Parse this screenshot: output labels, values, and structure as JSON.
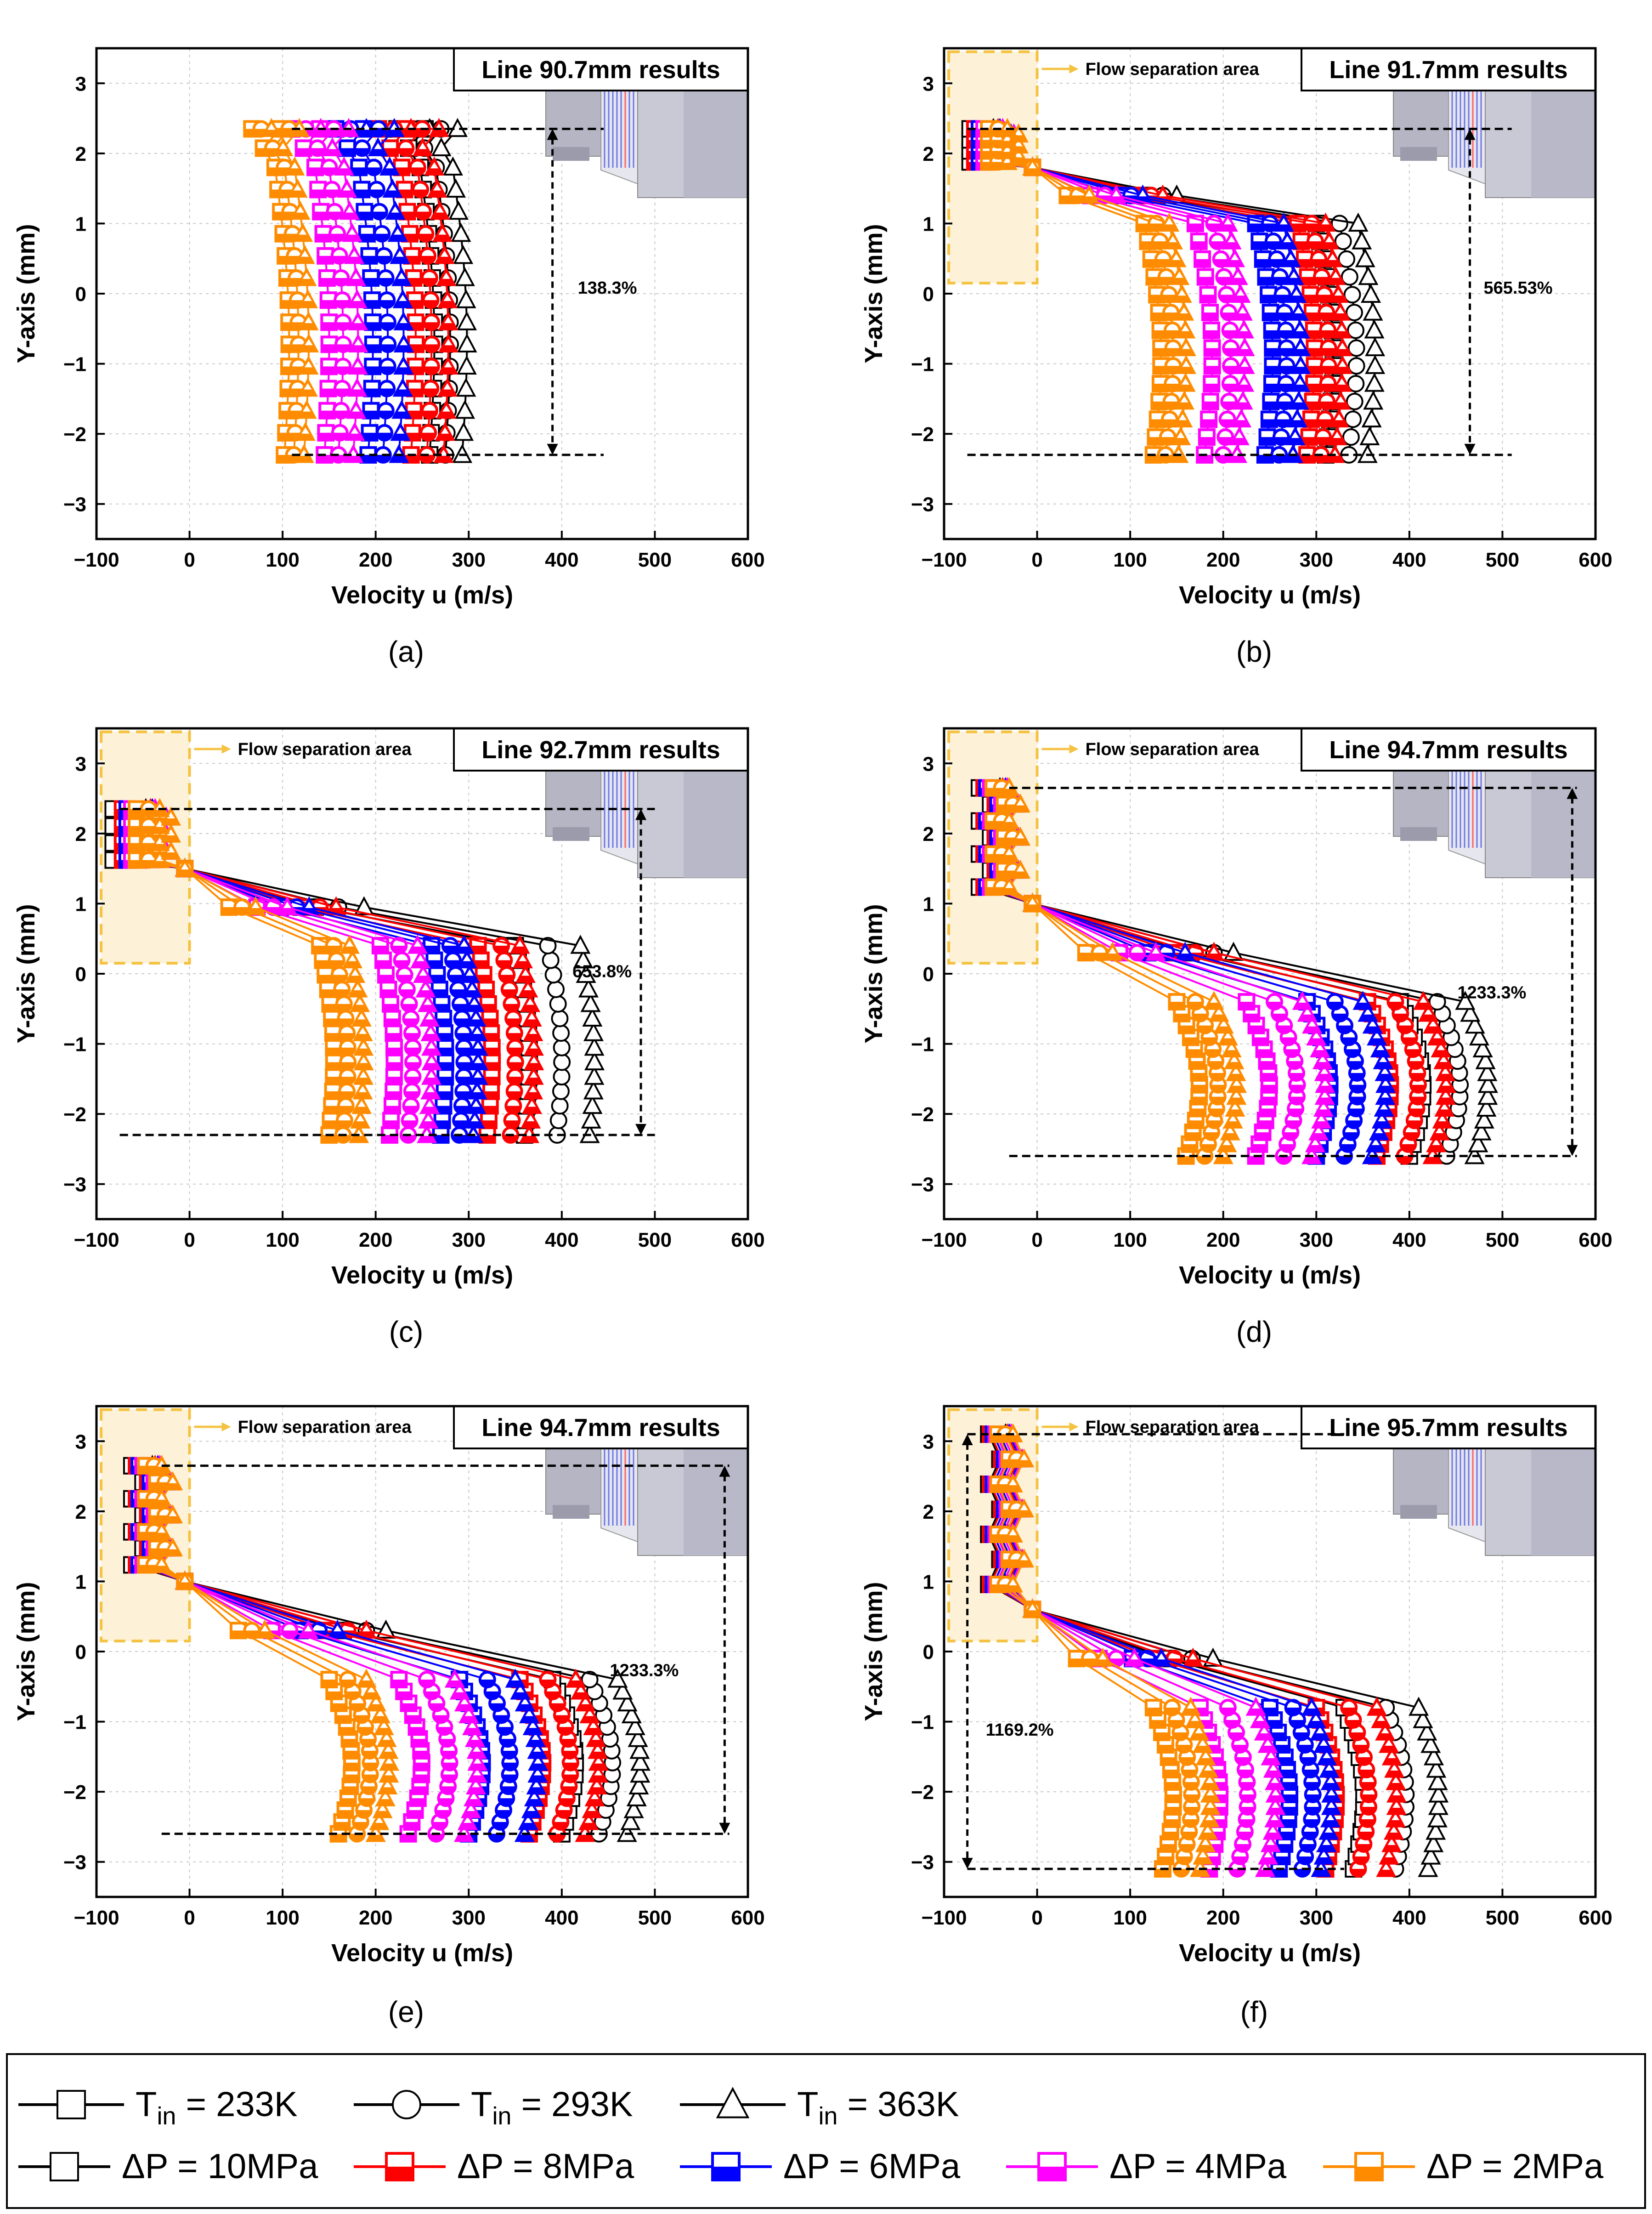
{
  "figure": {
    "x_axis_label": "Velocity u (m/s)",
    "y_axis_label": "Y-axis (mm)",
    "x_ticks": [
      "−100",
      "0",
      "100",
      "200",
      "300",
      "400",
      "500",
      "600"
    ],
    "y_ticks": [
      "3",
      "2",
      "1",
      "0",
      "−1",
      "−2",
      "−3"
    ],
    "separation_label": "Flow separation area",
    "colors": {
      "p10": "#000000",
      "p8": "#ff0000",
      "p6": "#0000ff",
      "p4": "#ff00ff",
      "p2": "#ff8c00",
      "separation_fill": "#fdf2d8",
      "separation_border": "#f5c242",
      "nozzle": "#c9c9d6"
    }
  },
  "chart_data": [
    {
      "type": "scatter",
      "panel": "a",
      "caption": "(a)",
      "title": "Line 90.7mm results",
      "separation": false,
      "annotation": "138.3%",
      "xlim": [
        -100,
        600
      ],
      "ylim": [
        -3.5,
        3.5
      ],
      "profile": {
        "y_min": -2.3,
        "y_max": 2.35,
        "y_core_top": 1.8,
        "sep_y": 2.35,
        "bulge": 0.06,
        "series": [
          {
            "pressure": "10MPa",
            "core": [
              258,
              275,
              293
            ]
          },
          {
            "pressure": "8MPa",
            "core": [
              238,
              255,
              273
            ]
          },
          {
            "pressure": "6MPa",
            "core": [
              192,
              208,
              225
            ]
          },
          {
            "pressure": "4MPa",
            "core": [
              145,
              160,
              176
            ]
          },
          {
            "pressure": "2MPa",
            "core": [
              102,
              112,
              123
            ]
          }
        ]
      },
      "arrow": {
        "x": 390,
        "y_top": 2.35,
        "y_bottom": -2.3,
        "x_start": 110,
        "x_end": 445
      }
    },
    {
      "type": "scatter",
      "panel": "b",
      "caption": "(b)",
      "title": "Line 91.7mm results",
      "separation": true,
      "annotation": "565.53%",
      "xlim": [
        -100,
        600
      ],
      "ylim": [
        -3.5,
        3.5
      ],
      "profile": {
        "y_min": -2.3,
        "y_max": 2.35,
        "y_core_top": 1.0,
        "sep_y": 1.8,
        "sep_top": 2.35,
        "bulge": 0.08,
        "series": [
          {
            "pressure": "10MPa",
            "core": [
              310,
              335,
              355
            ],
            "sep": [
              -60,
              -45,
              -35
            ]
          },
          {
            "pressure": "8MPa",
            "core": [
              290,
              305,
              320
            ],
            "sep": [
              -55,
              -40,
              -30
            ]
          },
          {
            "pressure": "6MPa",
            "core": [
              245,
              260,
              275
            ],
            "sep": [
              -50,
              -38,
              -28
            ]
          },
          {
            "pressure": "4MPa",
            "core": [
              180,
              200,
              215
            ],
            "sep": [
              -45,
              -35,
              -25
            ]
          },
          {
            "pressure": "2MPa",
            "core": [
              125,
              138,
              152
            ],
            "sep": [
              -40,
              -30,
              -20
            ]
          }
        ]
      },
      "arrow": {
        "x": 465,
        "y_top": 2.35,
        "y_bottom": -2.3,
        "x_start": -75,
        "x_end": 510
      }
    },
    {
      "type": "scatter",
      "panel": "c",
      "caption": "(c)",
      "title": "Line 92.7mm results",
      "separation": true,
      "annotation": "653.8%",
      "xlim": [
        -100,
        600
      ],
      "ylim": [
        -3.5,
        3.5
      ],
      "profile": {
        "y_min": -2.3,
        "y_max": 2.35,
        "y_core_top": 0.4,
        "sep_y": 1.5,
        "sep_top": 2.35,
        "bulge": 0.06,
        "series": [
          {
            "pressure": "10MPa",
            "core": [
              360,
              395,
              430
            ],
            "sep": [
              -70,
              -55,
              -35
            ]
          },
          {
            "pressure": "8MPa",
            "core": [
              320,
              345,
              365
            ],
            "sep": [
              -60,
              -45,
              -30
            ]
          },
          {
            "pressure": "6MPa",
            "core": [
              270,
              290,
              305
            ],
            "sep": [
              -55,
              -40,
              -28
            ]
          },
          {
            "pressure": "4MPa",
            "core": [
              215,
              235,
              255
            ],
            "sep": [
              -50,
              -35,
              -25
            ]
          },
          {
            "pressure": "2MPa",
            "core": [
              150,
              165,
              182
            ],
            "sep": [
              -45,
              -32,
              -20
            ]
          }
        ]
      },
      "arrow": {
        "x": 485,
        "y_top": 2.35,
        "y_bottom": -2.3,
        "x_start": -75,
        "x_end": 500
      }
    },
    {
      "type": "scatter",
      "panel": "d",
      "caption": "(d)",
      "title": "Line 94.7mm results",
      "separation": true,
      "annotation": "1233.3%",
      "xlim": [
        -100,
        600
      ],
      "ylim": [
        -3.5,
        3.5
      ],
      "profile": {
        "y_min": -2.6,
        "y_max": 2.65,
        "y_core_top": -0.4,
        "sep_y": 1.0,
        "sep_top": 2.65,
        "bulge": 0.12,
        "series": [
          {
            "pressure": "10MPa",
            "core": [
              400,
              440,
              470
            ],
            "sep": [
              -50,
              -40,
              -28
            ]
          },
          {
            "pressure": "8MPa",
            "core": [
              365,
              395,
              425
            ],
            "sep": [
              -45,
              -35,
              -25
            ]
          },
          {
            "pressure": "6MPa",
            "core": [
              300,
              330,
              360
            ],
            "sep": [
              -42,
              -32,
              -22
            ]
          },
          {
            "pressure": "4MPa",
            "core": [
              235,
              265,
              295
            ],
            "sep": [
              -38,
              -30,
              -20
            ]
          },
          {
            "pressure": "2MPa",
            "core": [
              160,
              180,
              200
            ],
            "sep": [
              -35,
              -26,
              -18
            ]
          }
        ]
      },
      "arrow": {
        "x": 575,
        "y_top": 2.65,
        "y_bottom": -2.6,
        "x_start": -30,
        "x_end": 580
      }
    },
    {
      "type": "scatter",
      "panel": "e",
      "caption": "(e)",
      "title": "Line 94.7mm results",
      "separation": true,
      "annotation": "1233.3%",
      "xlim": [
        -100,
        600
      ],
      "ylim": [
        -3.5,
        3.5
      ],
      "profile": {
        "y_min": -2.6,
        "y_max": 2.65,
        "y_core_top": -0.4,
        "sep_y": 1.0,
        "sep_top": 2.65,
        "bulge": 0.12,
        "series": [
          {
            "pressure": "10MPa",
            "core": [
              400,
              440,
              470
            ],
            "sep": [
              -50,
              -40,
              -28
            ]
          },
          {
            "pressure": "8MPa",
            "core": [
              365,
              395,
              425
            ],
            "sep": [
              -45,
              -35,
              -25
            ]
          },
          {
            "pressure": "6MPa",
            "core": [
              300,
              330,
              360
            ],
            "sep": [
              -42,
              -32,
              -22
            ]
          },
          {
            "pressure": "4MPa",
            "core": [
              235,
              265,
              295
            ],
            "sep": [
              -38,
              -30,
              -20
            ]
          },
          {
            "pressure": "2MPa",
            "core": [
              160,
              180,
              200
            ],
            "sep": [
              -35,
              -26,
              -18
            ]
          }
        ]
      },
      "arrow": {
        "x": 575,
        "y_top": 2.65,
        "y_bottom": -2.6,
        "x_start": -30,
        "x_end": 580
      }
    },
    {
      "type": "scatter",
      "panel": "f",
      "caption": "(f)",
      "title": "Line 95.7mm results",
      "separation": true,
      "annotation": "1169.2%",
      "xlim": [
        -100,
        600
      ],
      "ylim": [
        -3.5,
        3.5
      ],
      "profile": {
        "y_min": -3.1,
        "y_max": 3.1,
        "y_core_top": -0.8,
        "sep_y": 0.6,
        "sep_top": 3.1,
        "bulge": 0.1,
        "series": [
          {
            "pressure": "10MPa",
            "core": [
              340,
              385,
              420
            ],
            "sep": [
              -40,
              -32,
              -22
            ]
          },
          {
            "pressure": "8MPa",
            "core": [
              310,
              345,
              375
            ],
            "sep": [
              -38,
              -30,
              -20
            ]
          },
          {
            "pressure": "6MPa",
            "core": [
              260,
              285,
              305
            ],
            "sep": [
              -35,
              -28,
              -18
            ]
          },
          {
            "pressure": "4MPa",
            "core": [
              185,
              215,
              245
            ],
            "sep": [
              -32,
              -25,
              -16
            ]
          },
          {
            "pressure": "2MPa",
            "core": [
              135,
              155,
              175
            ],
            "sep": [
              -30,
              -22,
              -14
            ]
          }
        ]
      },
      "arrow": {
        "x": -75,
        "y_top": 3.1,
        "y_bottom": -3.1,
        "x_start": -75,
        "x_end": 330
      }
    }
  ],
  "legend": {
    "temperature_entries": [
      {
        "symbol": "square",
        "label_main": "T",
        "label_sub": "in",
        "label_rest": " = 233K"
      },
      {
        "symbol": "circle",
        "label_main": "T",
        "label_sub": "in",
        "label_rest": " = 293K"
      },
      {
        "symbol": "triangle",
        "label_main": "T",
        "label_sub": "in",
        "label_rest": " = 363K"
      }
    ],
    "pressure_entries": [
      {
        "color": "#000000",
        "label": "ΔP = 10MPa"
      },
      {
        "color": "#ff0000",
        "label": "ΔP = 8MPa"
      },
      {
        "color": "#0000ff",
        "label": "ΔP = 6MPa"
      },
      {
        "color": "#ff00ff",
        "label": "ΔP = 4MPa"
      },
      {
        "color": "#ff8c00",
        "label": "ΔP = 2MPa"
      }
    ]
  }
}
